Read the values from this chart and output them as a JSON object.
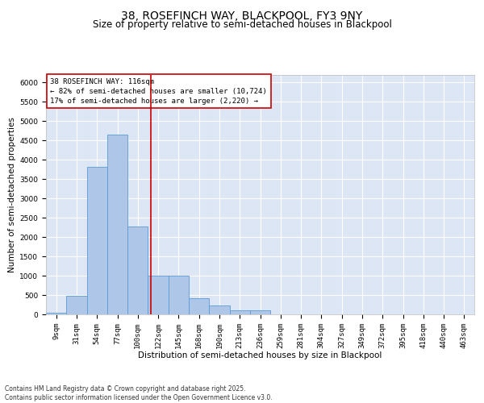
{
  "title1": "38, ROSEFINCH WAY, BLACKPOOL, FY3 9NY",
  "title2": "Size of property relative to semi-detached houses in Blackpool",
  "xlabel": "Distribution of semi-detached houses by size in Blackpool",
  "ylabel": "Number of semi-detached properties",
  "bin_labels": [
    "9sqm",
    "31sqm",
    "54sqm",
    "77sqm",
    "100sqm",
    "122sqm",
    "145sqm",
    "168sqm",
    "190sqm",
    "213sqm",
    "236sqm",
    "259sqm",
    "281sqm",
    "304sqm",
    "327sqm",
    "349sqm",
    "372sqm",
    "395sqm",
    "418sqm",
    "440sqm",
    "463sqm"
  ],
  "bar_values": [
    50,
    470,
    3820,
    4650,
    2280,
    1000,
    1000,
    410,
    220,
    110,
    110,
    0,
    0,
    0,
    0,
    0,
    0,
    0,
    0,
    0,
    0
  ],
  "bar_color": "#aec6e8",
  "bar_edge_color": "#5b9bd5",
  "background_color": "#dce6f5",
  "grid_color": "#ffffff",
  "annotation_text": "38 ROSEFINCH WAY: 116sqm\n← 82% of semi-detached houses are smaller (10,724)\n17% of semi-detached houses are larger (2,220) →",
  "annotation_box_color": "#ffffff",
  "annotation_box_edge_color": "#cc0000",
  "vline_x_index": 4.65,
  "vline_color": "#cc0000",
  "ylim": [
    0,
    6200
  ],
  "yticks": [
    0,
    500,
    1000,
    1500,
    2000,
    2500,
    3000,
    3500,
    4000,
    4500,
    5000,
    5500,
    6000
  ],
  "footnote": "Contains HM Land Registry data © Crown copyright and database right 2025.\nContains public sector information licensed under the Open Government Licence v3.0.",
  "title1_fontsize": 10,
  "title2_fontsize": 8.5,
  "axis_fontsize": 7.5,
  "tick_fontsize": 6.5,
  "annotation_fontsize": 6.5,
  "footnote_fontsize": 5.5
}
